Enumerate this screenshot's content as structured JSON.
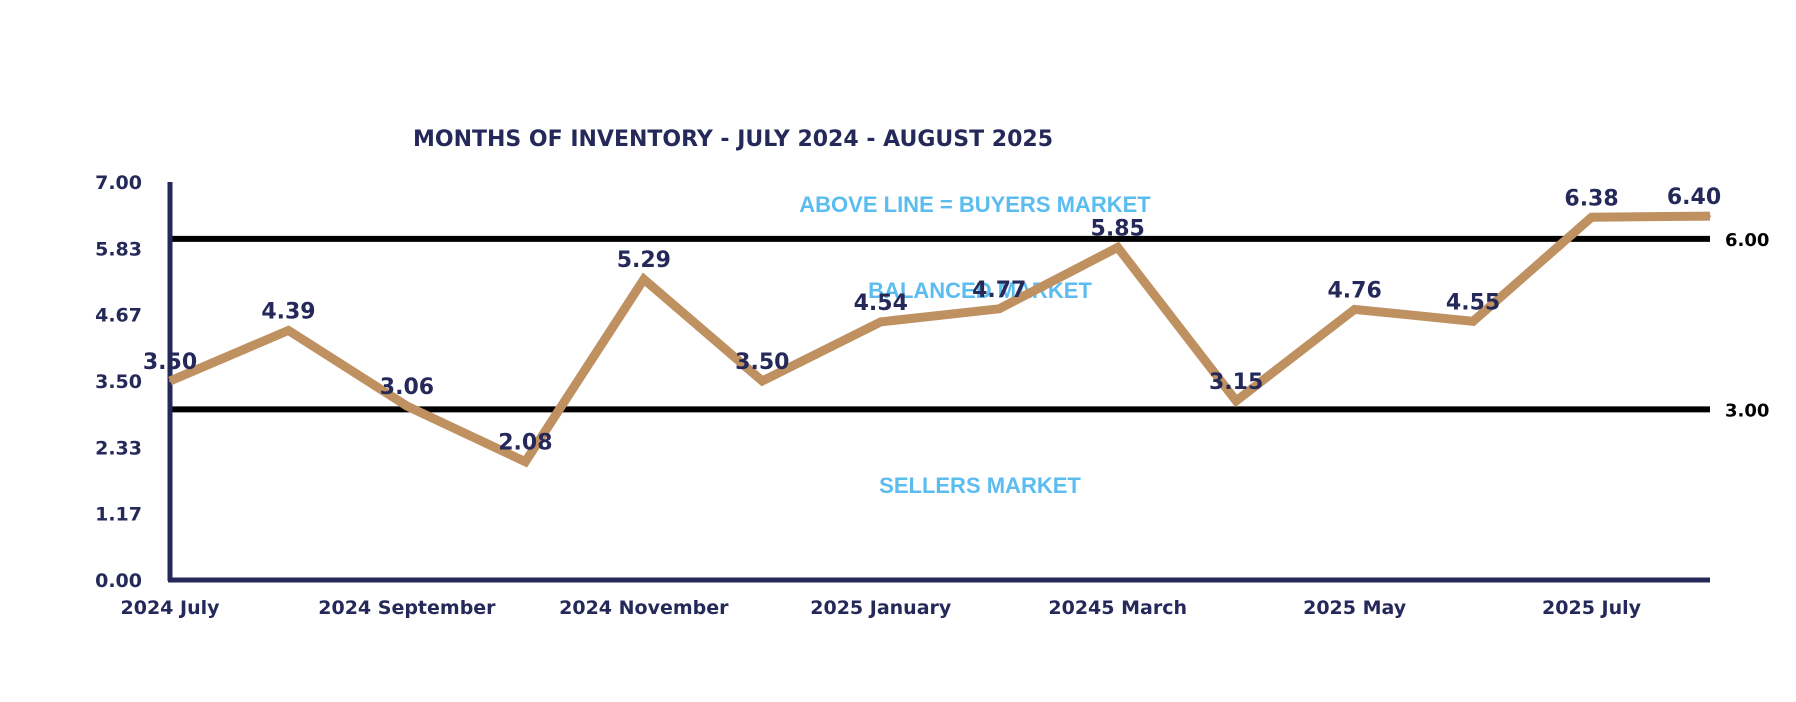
{
  "chart_data": {
    "type": "line",
    "title": "MONTHS OF INVENTORY - JULY 2024 - AUGUST 2025",
    "ylim": [
      0,
      7
    ],
    "y_ticks": [
      "0.00",
      "1.17",
      "2.33",
      "3.50",
      "4.67",
      "5.83",
      "7.00"
    ],
    "x_tick_labels": [
      {
        "index": 0,
        "label": "2024 July"
      },
      {
        "index": 2,
        "label": "2024 September"
      },
      {
        "index": 4,
        "label": "2024 November"
      },
      {
        "index": 6,
        "label": "2025 January"
      },
      {
        "index": 8,
        "label": "20245 March"
      },
      {
        "index": 10,
        "label": "2025 May"
      },
      {
        "index": 12,
        "label": "2025 July"
      }
    ],
    "values": [
      3.5,
      4.39,
      3.06,
      2.08,
      5.29,
      3.5,
      4.54,
      4.77,
      5.85,
      3.15,
      4.76,
      4.55,
      6.38,
      6.4
    ],
    "data_labels": [
      "3.50",
      "4.39",
      "3.06",
      "2.08",
      "5.29",
      "3.50",
      "4.54",
      "4.77",
      "5.85",
      "3.15",
      "4.76",
      "4.55",
      "6.38",
      "6.40"
    ],
    "reference_lines": [
      {
        "value": 6.0,
        "label": "6.00"
      },
      {
        "value": 3.0,
        "label": "3.00"
      }
    ],
    "zone_labels": {
      "above": "ABOVE LINE = BUYERS MARKET",
      "middle": "BALANCED MARKET",
      "below": "SELLERS MARKET"
    },
    "grid": false,
    "colors": {
      "line": "#bf9060",
      "axis": "#25295a",
      "text": "#25295a",
      "reference": "#000000",
      "zone_text": "#5bbcf0"
    }
  }
}
